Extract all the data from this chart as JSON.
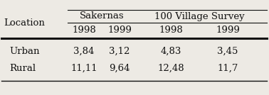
{
  "row_label": "Location",
  "group1_label": "Sakernas",
  "group2_label": "100 Village Survey",
  "col_headers": [
    "1998",
    "1999",
    "1998",
    "1999"
  ],
  "rows": [
    {
      "location": "Urban",
      "values": [
        "3,84",
        "3,12",
        "4,83",
        "3,45"
      ]
    },
    {
      "location": "Rural",
      "values": [
        "11,11",
        "9,64",
        "12,48",
        "11,7"
      ]
    }
  ],
  "bg_color": "#edeae4",
  "text_color": "#111111",
  "fontsize": 9.5
}
